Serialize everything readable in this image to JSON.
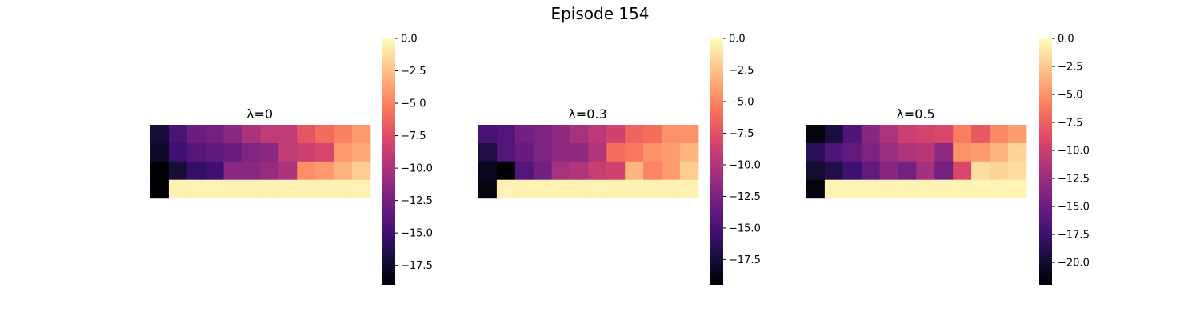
{
  "figure": {
    "title": "Episode 154"
  },
  "chart_data": [
    {
      "type": "heatmap",
      "title": "λ=0",
      "colormap": "magma",
      "vmin": -19,
      "vmax": 0,
      "colorbar_ticks": [
        0.0,
        -2.5,
        -5.0,
        -7.5,
        -10.0,
        -12.5,
        -15.0,
        -17.5
      ],
      "colorbar_tick_labels": [
        "0.0",
        "−2.5",
        "−5.0",
        "−7.5",
        "−10.0",
        "−12.5",
        "−15.0",
        "−17.5"
      ],
      "values": [
        [
          -17.0,
          -14.5,
          -13.0,
          -12.5,
          -11.5,
          -10.0,
          -9.0,
          -9.0,
          -7.0,
          -6.0,
          -5.0,
          -4.0
        ],
        [
          -17.5,
          -15.0,
          -14.0,
          -13.5,
          -13.0,
          -12.0,
          -11.5,
          -9.0,
          -8.5,
          -8.0,
          -4.0,
          -3.5
        ],
        [
          -19.0,
          -17.0,
          -15.5,
          -15.0,
          -11.5,
          -11.5,
          -11.0,
          -10.0,
          -4.5,
          -4.0,
          -3.0,
          -2.0
        ],
        [
          -19.0,
          -0.5,
          -0.5,
          -0.5,
          -0.5,
          -0.5,
          -0.5,
          -0.5,
          -0.5,
          -0.5,
          -0.5,
          -0.5
        ]
      ]
    },
    {
      "type": "heatmap",
      "title": "λ=0.3",
      "colormap": "magma",
      "vmin": -19.5,
      "vmax": 0,
      "colorbar_ticks": [
        0.0,
        -2.5,
        -5.0,
        -7.5,
        -10.0,
        -12.5,
        -15.0,
        -17.5
      ],
      "colorbar_tick_labels": [
        "0.0",
        "−2.5",
        "−5.0",
        "−7.5",
        "−10.0",
        "−12.5",
        "−15.0",
        "−17.5"
      ],
      "values": [
        [
          -15.0,
          -14.5,
          -13.0,
          -12.5,
          -11.5,
          -10.5,
          -9.5,
          -8.5,
          -6.5,
          -6.0,
          -4.5,
          -4.5
        ],
        [
          -17.0,
          -14.5,
          -13.5,
          -12.5,
          -11.5,
          -11.5,
          -10.0,
          -6.0,
          -5.5,
          -4.5,
          -4.0,
          -3.0
        ],
        [
          -18.5,
          -19.5,
          -14.5,
          -13.0,
          -10.5,
          -10.0,
          -9.0,
          -8.5,
          -3.0,
          -5.0,
          -4.0,
          -2.0
        ],
        [
          -19.0,
          -0.5,
          -0.5,
          -0.5,
          -0.5,
          -0.5,
          -0.5,
          -0.5,
          -0.5,
          -0.5,
          -0.5,
          -0.5
        ]
      ]
    },
    {
      "type": "heatmap",
      "title": "λ=0.5",
      "colormap": "magma",
      "vmin": -22,
      "vmax": 0,
      "colorbar_ticks": [
        0.0,
        -2.5,
        -5.0,
        -7.5,
        -10.0,
        -12.5,
        -15.0,
        -17.5,
        -20.0
      ],
      "colorbar_tick_labels": [
        "0.0",
        "−2.5",
        "−5.0",
        "−7.5",
        "−10.0",
        "−12.5",
        "−15.0",
        "−17.5",
        "−20.0"
      ],
      "values": [
        [
          -21.5,
          -19.5,
          -16.5,
          -13.5,
          -11.5,
          -10.0,
          -9.5,
          -9.0,
          -6.0,
          -8.0,
          -5.5,
          -4.5
        ],
        [
          -18.5,
          -16.5,
          -15.5,
          -14.0,
          -12.5,
          -11.5,
          -11.0,
          -13.0,
          -5.0,
          -4.5,
          -3.5,
          -2.0
        ],
        [
          -20.0,
          -19.0,
          -17.5,
          -15.5,
          -13.5,
          -14.5,
          -12.0,
          -14.5,
          -9.0,
          -1.5,
          -2.0,
          -1.5
        ],
        [
          -21.5,
          -0.5,
          -0.5,
          -0.5,
          -0.5,
          -0.5,
          -0.5,
          -0.5,
          -0.5,
          -0.5,
          -0.5,
          -0.5
        ]
      ]
    }
  ]
}
